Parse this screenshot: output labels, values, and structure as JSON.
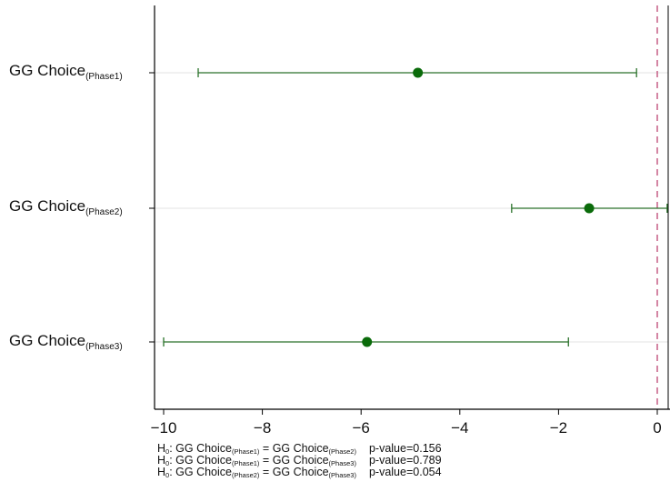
{
  "chart_data": {
    "type": "scatter",
    "orientation": "horizontal",
    "categories": [
      {
        "base": "GG Choice",
        "sub": "(Phase1)"
      },
      {
        "base": "GG Choice",
        "sub": "(Phase2)"
      },
      {
        "base": "GG Choice",
        "sub": "(Phase3)"
      }
    ],
    "series": [
      {
        "estimates": [
          -4.85,
          -1.38,
          -5.88
        ],
        "ci_low": [
          -9.3,
          -2.95,
          -10.0
        ],
        "ci_high": [
          -0.42,
          0.2,
          -1.8
        ]
      }
    ],
    "xlim": [
      -10.2,
      0.25
    ],
    "xticks": [
      "-10",
      "-8",
      "-6",
      "-4",
      "-2",
      "0"
    ],
    "reference_line_x": 0,
    "grid": "horizontal",
    "colors": {
      "marker": "#0a6b0a",
      "ci": "#2a722a",
      "ref_line": "#c2537e",
      "grid": "#e3e3e3"
    },
    "notes": [
      {
        "h": "H",
        "h_sub": "0",
        "colon": ": ",
        "lhs": "GG Choice",
        "lhs_sub": "(Phase1)",
        "eq": " = ",
        "rhs": "GG Choice",
        "rhs_sub": "(Phase2)",
        "pvalue": "p-value=0.156"
      },
      {
        "h": "H",
        "h_sub": "0",
        "colon": ": ",
        "lhs": "GG Choice",
        "lhs_sub": "(Phase1)",
        "eq": " = ",
        "rhs": "GG Choice",
        "rhs_sub": "(Phase3)",
        "pvalue": "p-value=0.789"
      },
      {
        "h": "H",
        "h_sub": "0",
        "colon": ": ",
        "lhs": "GG Choice",
        "lhs_sub": "(Phase2)",
        "eq": " = ",
        "rhs": "GG Choice",
        "rhs_sub": "(Phase3)",
        "pvalue": "p-value=0.054"
      }
    ]
  }
}
